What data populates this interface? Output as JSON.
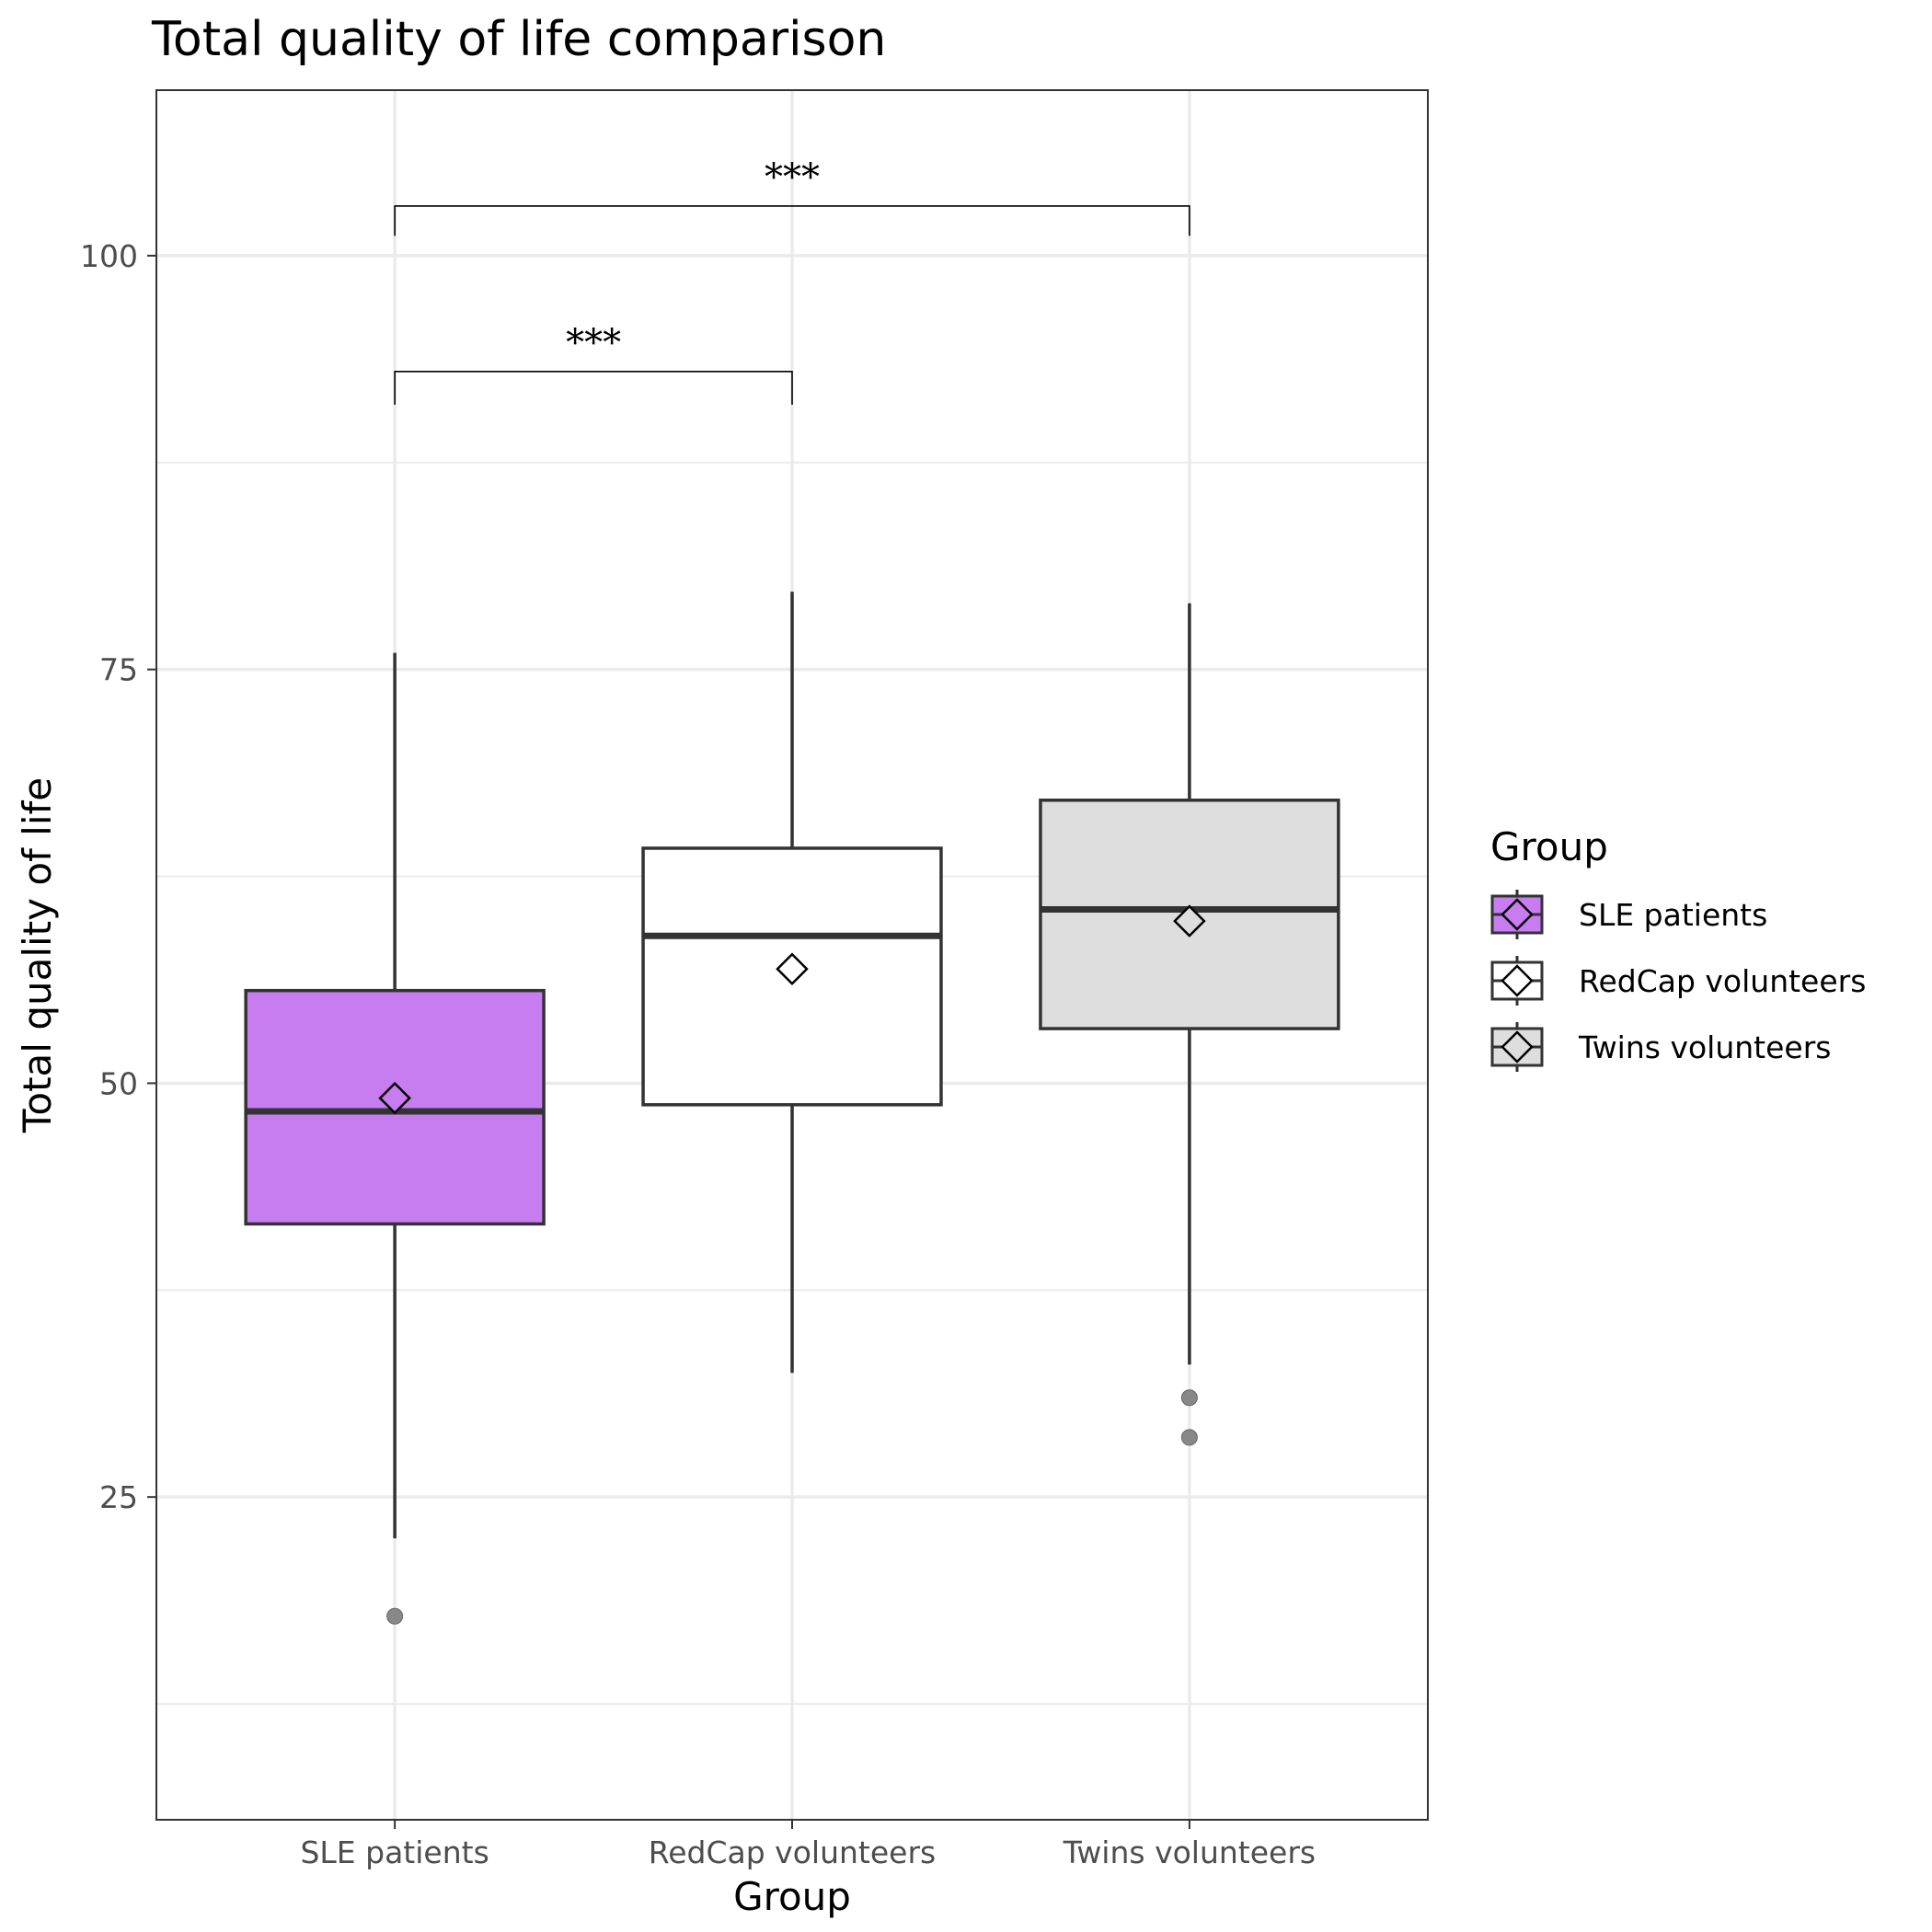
{
  "chart_data": {
    "type": "box",
    "title": "Total quality of life comparison",
    "xlabel": "Group",
    "ylabel": "Total quality of life",
    "ylim": [
      5.5,
      110
    ],
    "y_ticks": [
      25,
      50,
      75,
      100
    ],
    "y_minor_ticks": [
      12.5,
      37.5,
      62.5,
      87.5
    ],
    "grid": true,
    "categories": [
      "SLE patients",
      "RedCap volunteers",
      "Twins volunteers"
    ],
    "series": [
      {
        "name": "SLE patients",
        "color": "#c77cf0",
        "whisker_low": 22.5,
        "q1": 41.5,
        "median": 48.3,
        "q3": 55.6,
        "whisker_high": 76,
        "mean": 49.1,
        "outliers": [
          17.8
        ]
      },
      {
        "name": "RedCap volunteers",
        "color": "#ffffff",
        "whisker_low": 32.5,
        "q1": 48.7,
        "median": 58.9,
        "q3": 64.2,
        "whisker_high": 79.7,
        "mean": 56.9,
        "outliers": []
      },
      {
        "name": "Twins volunteers",
        "color": "#dedede",
        "whisker_low": 33,
        "q1": 53.3,
        "median": 60.5,
        "q3": 67.1,
        "whisker_high": 79,
        "mean": 59.8,
        "outliers": [
          31,
          28.6
        ]
      }
    ],
    "significance": [
      {
        "from": 0,
        "to": 1,
        "label": "***",
        "y": 93,
        "tick_bottom": 91
      },
      {
        "from": 0,
        "to": 2,
        "label": "***",
        "y": 103,
        "tick_bottom": 101.2
      }
    ],
    "legend": {
      "title": "Group",
      "position": "right"
    }
  }
}
